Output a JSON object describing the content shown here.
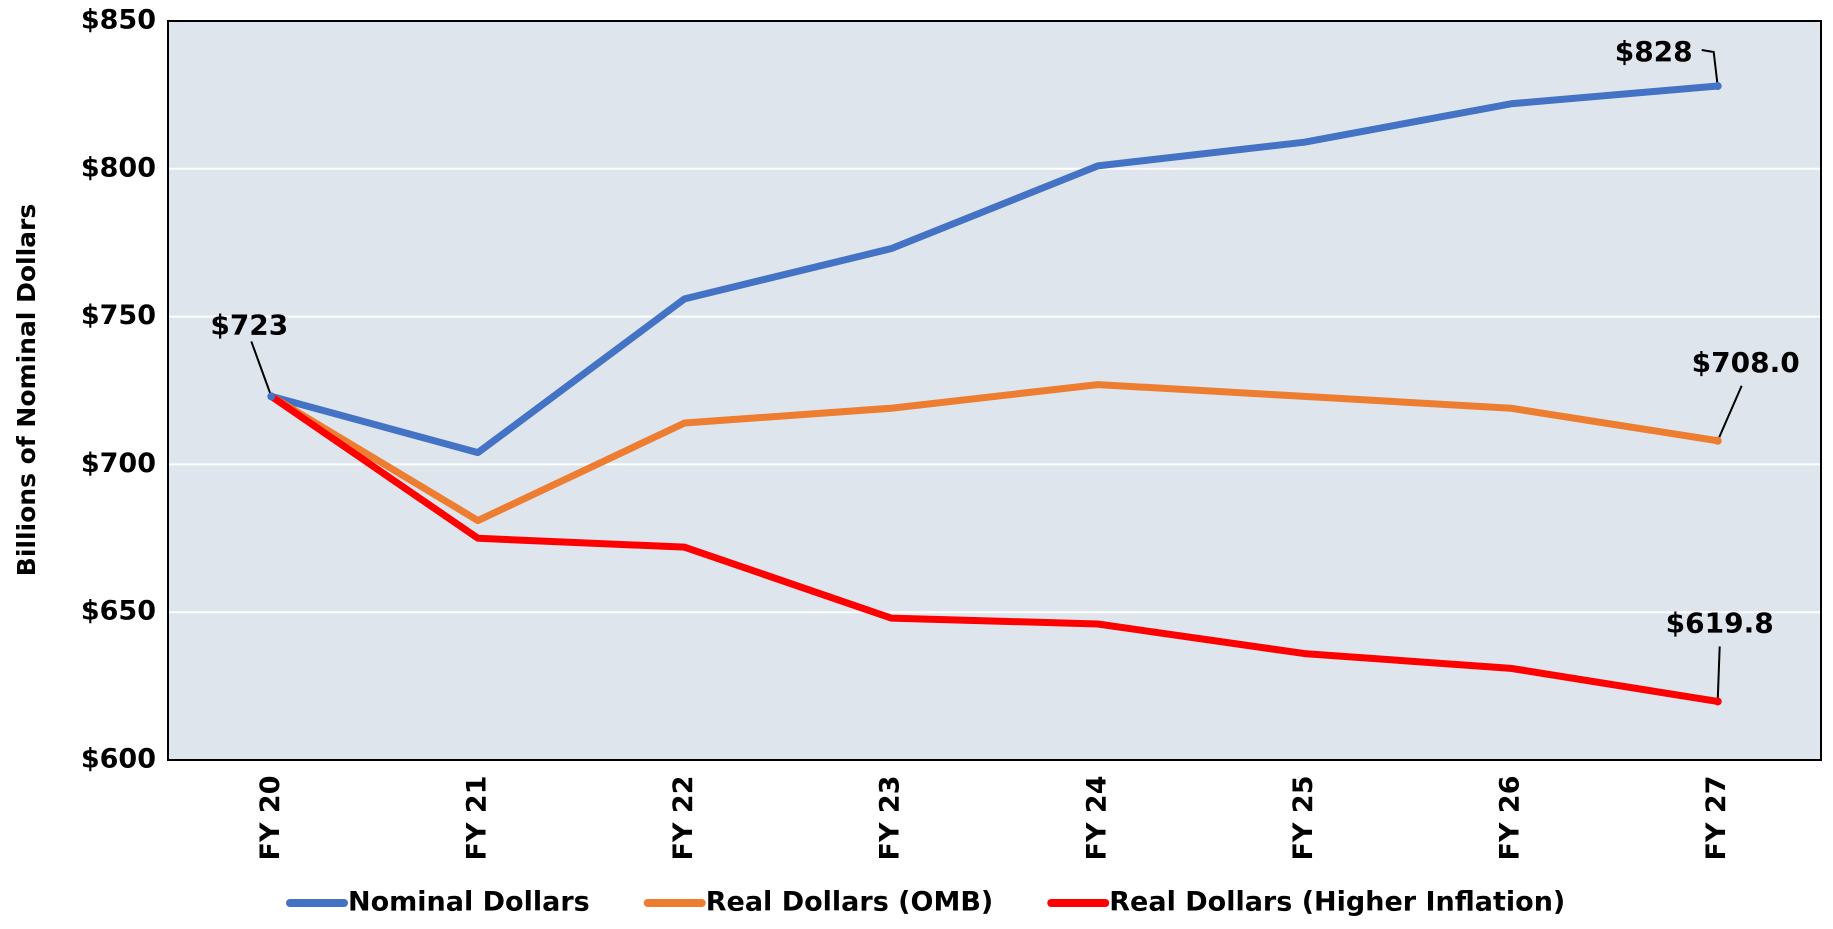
{
  "chart_data": {
    "type": "line",
    "y_label": "Billions of Nominal Dollars",
    "categories": [
      "FY 20",
      "FY 21",
      "FY 22",
      "FY 23",
      "FY 24",
      "FY 25",
      "FY 26",
      "FY 27"
    ],
    "series": [
      {
        "name": "Nominal Dollars",
        "color": "#4472c4",
        "values": [
          723,
          704,
          756,
          773,
          801,
          809,
          822,
          828
        ],
        "value_labels": [
          "$723",
          null,
          null,
          null,
          null,
          null,
          null,
          "$828"
        ]
      },
      {
        "name": "Real Dollars (OMB)",
        "color": "#ed7d31",
        "values": [
          723,
          681,
          714,
          719,
          727,
          723,
          719,
          708.0
        ],
        "value_labels": [
          null,
          null,
          null,
          null,
          null,
          null,
          null,
          "$708.0"
        ]
      },
      {
        "name": "Real Dollars (Higher Inflation)",
        "color": "#ff0000",
        "values": [
          723,
          675,
          672,
          648,
          646,
          636,
          631,
          619.8
        ],
        "value_labels": [
          null,
          null,
          null,
          null,
          null,
          null,
          null,
          "$619.8"
        ]
      }
    ],
    "ylim": [
      600,
      850
    ],
    "yticks": [
      {
        "value": 600,
        "label": "$600"
      },
      {
        "value": 650,
        "label": "$650"
      },
      {
        "value": 700,
        "label": "$700"
      },
      {
        "value": 750,
        "label": "$750"
      },
      {
        "value": 800,
        "label": "$800"
      },
      {
        "value": 850,
        "label": "$850"
      }
    ],
    "grid": true,
    "legend": "bottom"
  }
}
